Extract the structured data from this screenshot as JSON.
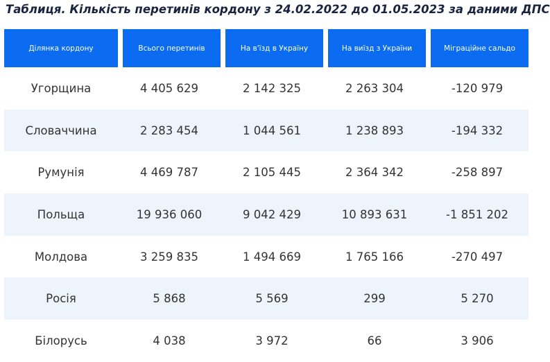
{
  "title": "Таблиця. Кількість перетинів кордону з 24.02.2022 до 01.05.2023 за даними ДПС",
  "table": {
    "header": [
      "Ділянка кордону",
      "Всього перетинів",
      "На в'їзд в Україну",
      "На виїзд з України",
      "Міграційне сальдо"
    ],
    "rows": [
      [
        "Угорщина",
        "4 405 629",
        "2 142 325",
        "2 263 304",
        "-120 979"
      ],
      [
        "Словаччина",
        "2 283 454",
        "1 044 561",
        "1 238 893",
        "-194 332"
      ],
      [
        "Румунія",
        "4 469 787",
        "2 105 445",
        "2 364 342",
        "-258 897"
      ],
      [
        "Польща",
        "19 936 060",
        "9 042 429",
        "10 893 631",
        "-1 851 202"
      ],
      [
        "Молдова",
        "3 259 835",
        "1 494 669",
        "1 765 166",
        "-270 497"
      ],
      [
        "Росія",
        "5 868",
        "5 569",
        "299",
        "5 270"
      ],
      [
        "Білорусь",
        "4 038",
        "3 972",
        "66",
        "3 906"
      ]
    ]
  }
}
